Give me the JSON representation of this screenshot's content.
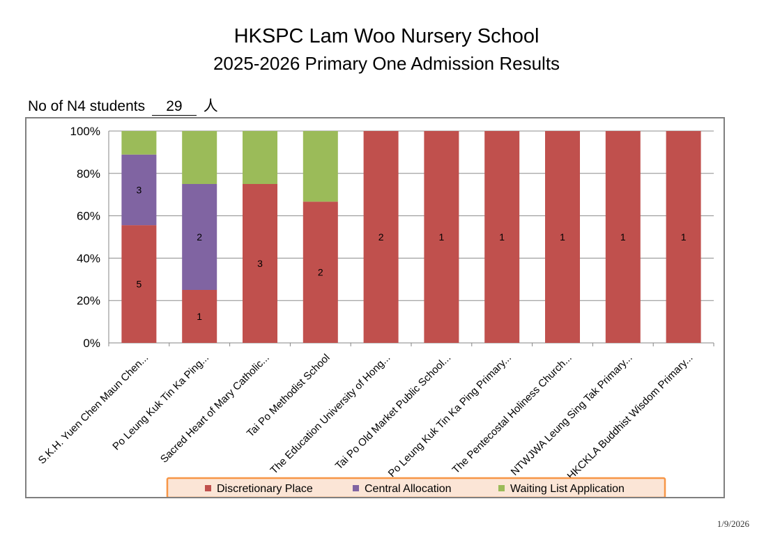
{
  "header": {
    "title": "HKSPC Lam Woo Nursery School",
    "subtitle": "2025-2026 Primary One Admission Results"
  },
  "students": {
    "label": "No of N4 students",
    "count": "29",
    "unit": "人"
  },
  "footer": {
    "date": "1/9/2026"
  },
  "chart_data": {
    "type": "bar",
    "stacked": true,
    "percent": true,
    "categories": [
      "S.K.H. Yuen Chen Maun Chen...",
      "Po Leung Kuk Tin Ka Ping...",
      "Sacred Heart of Mary Catholic...",
      "Tai Po Methodist School",
      "The Education University of Hong...",
      "Tai Po Old Market Public School...",
      "Po Leung Kuk Tin Ka Ping Primary...",
      "The Pentecostal Holiness Church...",
      "NTWJWA Leung Sing Tak Primary...",
      "HKCKLA Buddhist Wisdom Primary..."
    ],
    "series": [
      {
        "name": "Discretionary Place",
        "color": "#c0504d",
        "values": [
          5,
          1,
          3,
          2,
          2,
          1,
          1,
          1,
          1,
          1
        ],
        "labels": [
          true,
          true,
          true,
          true,
          true,
          true,
          true,
          true,
          true,
          true
        ]
      },
      {
        "name": "Central Allocation",
        "color": "#8064a2",
        "values": [
          3,
          2,
          0,
          0,
          0,
          0,
          0,
          0,
          0,
          0
        ],
        "labels": [
          true,
          true,
          false,
          false,
          false,
          false,
          false,
          false,
          false,
          false
        ]
      },
      {
        "name": "Waiting List Application",
        "color": "#9bbb59",
        "values": [
          1,
          1,
          1,
          1,
          0,
          0,
          0,
          0,
          0,
          0
        ],
        "labels": [
          false,
          false,
          false,
          false,
          false,
          false,
          false,
          false,
          false,
          false
        ]
      }
    ],
    "y_ticks": [
      "0%",
      "20%",
      "40%",
      "60%",
      "80%",
      "100%"
    ],
    "ylim": [
      0,
      100
    ],
    "grid": true,
    "legend_position": "bottom"
  }
}
